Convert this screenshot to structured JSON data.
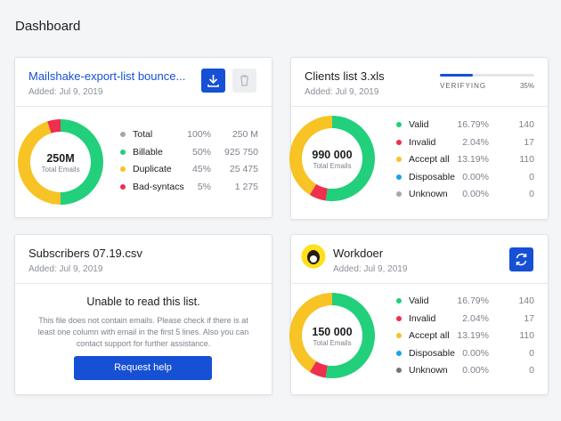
{
  "header": {
    "title": "Dashboard"
  },
  "cards": [
    {
      "title": "Mailshake-export-list bounce...",
      "date": "Added: Jul 9, 2019",
      "total": {
        "name": "Total",
        "percent": "100%",
        "count": "250 M"
      },
      "chart_data": {
        "type": "pie",
        "center_value": "250M",
        "center_label": "Total Emails",
        "categories": [
          "Billable",
          "Duplicate",
          "Bad-syntacs"
        ],
        "values": [
          50,
          45,
          5
        ],
        "value_labels": [
          "50%",
          "45%",
          "5%"
        ],
        "counts": [
          "925 750",
          "25 475",
          "1 275"
        ],
        "colors": [
          "#22cf7b",
          "#f7c325",
          "#ee2f4e"
        ]
      }
    },
    {
      "title": "Clients list 3.xls",
      "date": "Added: Jul 9, 2019",
      "progress": {
        "label": "VERIFYING",
        "value": 35,
        "value_label": "35%"
      },
      "chart_data": {
        "type": "pie",
        "center_value": "990 000",
        "center_label": "Total Emails",
        "categories": [
          "Valid",
          "Invalid",
          "Accept all",
          "Disposable",
          "Unknown"
        ],
        "values": [
          16.79,
          2.04,
          13.19,
          0,
          0
        ],
        "value_labels": [
          "16.79%",
          "2.04%",
          "13.19%",
          "0.00%",
          "0.00%"
        ],
        "counts": [
          "140",
          "17",
          "110",
          "0",
          "0"
        ],
        "colors": [
          "#22cf7b",
          "#ee2f4e",
          "#f7c325",
          "#1aa3e8",
          "#a3a7ad"
        ]
      }
    },
    {
      "title": "Subscribers 07.19.csv",
      "date": "Added: Jul 9, 2019",
      "heading": "Unable to read this list.",
      "message": "This file does not contain emails. Please check if there is at least one column with email in the first 5 lines. Also you can contact support for further assistance.",
      "button": "Request help"
    },
    {
      "title": "Workdoer",
      "date": "Added: Jul 9, 2019",
      "chart_data": {
        "type": "pie",
        "center_value": "150 000",
        "center_label": "Total Emails",
        "categories": [
          "Valid",
          "Invalid",
          "Accept all",
          "Disposable",
          "Unknown"
        ],
        "values": [
          16.79,
          2.04,
          13.19,
          0,
          0
        ],
        "value_labels": [
          "16.79%",
          "2.04%",
          "13.19%",
          "0.00%",
          "0.00%"
        ],
        "counts": [
          "140",
          "17",
          "110",
          "0",
          "0"
        ],
        "colors": [
          "#22cf7b",
          "#ee2f4e",
          "#f7c325",
          "#1aa3e8",
          "#6f757c"
        ]
      }
    }
  ]
}
